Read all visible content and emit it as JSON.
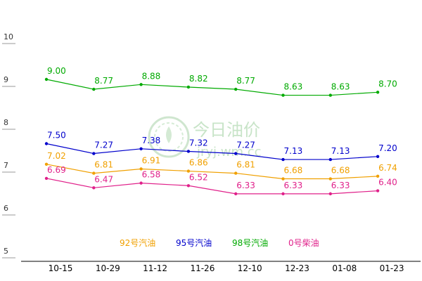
{
  "chart_data": {
    "type": "line",
    "title": "",
    "xlabel": "",
    "ylabel": "",
    "categories": [
      "10-15",
      "10-29",
      "11-12",
      "11-26",
      "12-10",
      "12-23",
      "01-08",
      "01-23"
    ],
    "ylim": [
      5,
      10
    ],
    "yticks": [
      "5",
      "6",
      "7",
      "8",
      "9",
      "10"
    ],
    "series": [
      {
        "name": "92号汽油",
        "color": "#f0a000",
        "values": [
          7.02,
          6.81,
          6.91,
          6.86,
          6.81,
          6.68,
          6.68,
          6.74
        ],
        "labels": [
          "7.02",
          "6.81",
          "6.91",
          "6.86",
          "6.81",
          "6.68",
          "6.68",
          "6.74"
        ]
      },
      {
        "name": "95号汽油",
        "color": "#0000cc",
        "values": [
          7.5,
          7.27,
          7.38,
          7.32,
          7.27,
          7.13,
          7.13,
          7.2
        ],
        "labels": [
          "7.50",
          "7.27",
          "7.38",
          "7.32",
          "7.27",
          "7.13",
          "7.13",
          "7.20"
        ]
      },
      {
        "name": "98号汽油",
        "color": "#00aa00",
        "values": [
          9.0,
          8.77,
          8.88,
          8.82,
          8.77,
          8.63,
          8.63,
          8.7
        ],
        "labels": [
          "9.00",
          "8.77",
          "8.88",
          "8.82",
          "8.77",
          "8.63",
          "8.63",
          "8.70"
        ]
      },
      {
        "name": "0号柴油",
        "color": "#e0208a",
        "values": [
          6.69,
          6.47,
          6.58,
          6.52,
          6.33,
          6.33,
          6.33,
          6.4
        ],
        "labels": [
          "6.69",
          "6.47",
          "6.58",
          "6.52",
          "6.33",
          "6.33",
          "6.33",
          "6.40"
        ]
      }
    ],
    "legend_position": "bottom-center",
    "grid": false
  },
  "watermark": {
    "name": "今日油价",
    "url": "jryj.wm.cc"
  },
  "colors": {
    "axis": "#000000",
    "tick_line": "#999999",
    "watermark": "#c8e4c8"
  }
}
